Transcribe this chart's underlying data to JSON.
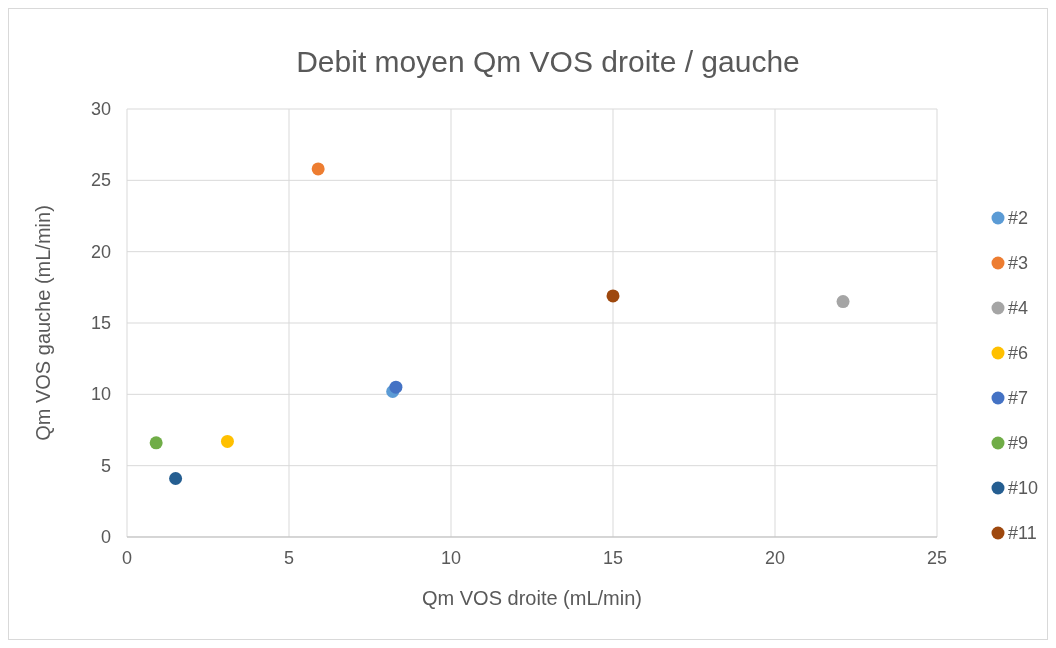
{
  "chart_data": {
    "type": "scatter",
    "title": "Debit moyen Qm VOS droite / gauche",
    "xlabel": "Qm VOS droite (mL/min)",
    "ylabel": "Qm VOS gauche (mL/min)",
    "xlim": [
      0,
      25
    ],
    "xticks": [
      0,
      5,
      10,
      15,
      20,
      25
    ],
    "ylim": [
      0,
      30
    ],
    "yticks": [
      0,
      5,
      10,
      15,
      20,
      25,
      30
    ],
    "grid": true,
    "legend": "right",
    "marker": "circle",
    "series": [
      {
        "name": "#2",
        "color": "#5b9bd5",
        "x": [
          8.2
        ],
        "values": [
          10.2
        ]
      },
      {
        "name": "#3",
        "color": "#ed7d31",
        "x": [
          5.9
        ],
        "values": [
          25.8
        ]
      },
      {
        "name": "#4",
        "color": "#a5a5a5",
        "x": [
          22.1
        ],
        "values": [
          16.5
        ]
      },
      {
        "name": "#6",
        "color": "#ffc000",
        "x": [
          3.1
        ],
        "values": [
          6.7
        ]
      },
      {
        "name": "#7",
        "color": "#4472c4",
        "x": [
          8.3
        ],
        "values": [
          10.5
        ]
      },
      {
        "name": "#9",
        "color": "#70ad47",
        "x": [
          0.9
        ],
        "values": [
          6.6
        ]
      },
      {
        "name": "#10",
        "color": "#255e91",
        "x": [
          1.5
        ],
        "values": [
          4.1
        ]
      },
      {
        "name": "#11",
        "color": "#9e480e",
        "x": [
          15
        ],
        "values": [
          16.9
        ]
      }
    ]
  }
}
